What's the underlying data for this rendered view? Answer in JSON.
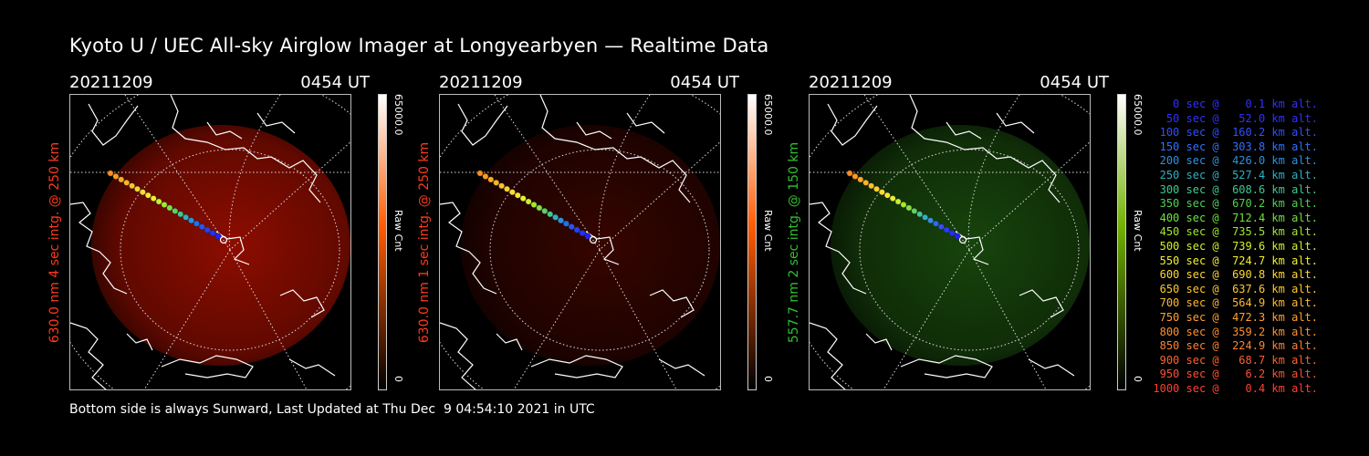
{
  "title": "Kyoto U / UEC All-sky Airglow Imager at Longyearbyen — Realtime Data",
  "footer": "Bottom side is always Sunward, Last Updated at Thu Dec  9 04:54:10 2021 in UTC",
  "panels": [
    {
      "date": "20211209",
      "time": "0454 UT",
      "ylabel": "630.0 nm 4 sec intg. @ 250 km",
      "ylabel_color": "#ff3a1a",
      "colorbar_max": "65000.0",
      "colorbar_min": "0",
      "colorbar_unit": "Raw Cnt",
      "colorbar_top": "#ffffff",
      "colorbar_mid": "#ff5a00",
      "colorbar_bottom": "#000000",
      "glow_color": "#b01000",
      "glow_level": 0.55
    },
    {
      "date": "20211209",
      "time": "0454 UT",
      "ylabel": "630.0 nm 1 sec intg. @ 250 km",
      "ylabel_color": "#ff3a1a",
      "colorbar_max": "65000.0",
      "colorbar_min": "0",
      "colorbar_unit": "Raw Cnt",
      "colorbar_top": "#ffffff",
      "colorbar_mid": "#ff5a00",
      "colorbar_bottom": "#000000",
      "glow_color": "#5a0800",
      "glow_level": 0.35
    },
    {
      "date": "20211209",
      "time": "0454 UT",
      "ylabel": "557.7 nm 2 sec intg. @ 150 km",
      "ylabel_color": "#30c030",
      "colorbar_max": "65000.0",
      "colorbar_min": "0",
      "colorbar_unit": "Raw Cnt",
      "colorbar_top": "#ffffff",
      "colorbar_mid": "#70b000",
      "colorbar_bottom": "#000000",
      "glow_color": "#1f5a10",
      "glow_level": 0.5
    }
  ],
  "trajectory_colors": [
    "#ff8c1a",
    "#ff9a1a",
    "#ffa820",
    "#ffb520",
    "#ffc228",
    "#ffd030",
    "#ffdc30",
    "#f8e830",
    "#e8f030",
    "#c8f030",
    "#a8e830",
    "#80e040",
    "#60d060",
    "#40c890",
    "#30b0c0",
    "#3090e0",
    "#2070f0",
    "#3050f0",
    "#2040ff",
    "#2030ff",
    "#2020ff"
  ],
  "legend": [
    {
      "text": "0 sec @    0.1 km alt.",
      "color": "#3030ff"
    },
    {
      "text": "50 sec @   52.0 km alt.",
      "color": "#3030ff"
    },
    {
      "text": "100 sec @  160.2 km alt.",
      "color": "#3050ff"
    },
    {
      "text": "150 sec @  303.8 km alt.",
      "color": "#3070ff"
    },
    {
      "text": "200 sec @  426.0 km alt.",
      "color": "#3090e0"
    },
    {
      "text": "250 sec @  527.4 km alt.",
      "color": "#30b0c0"
    },
    {
      "text": "300 sec @  608.6 km alt.",
      "color": "#40c890"
    },
    {
      "text": "350 sec @  670.2 km alt.",
      "color": "#50d050"
    },
    {
      "text": "400 sec @  712.4 km alt.",
      "color": "#70e040"
    },
    {
      "text": "450 sec @  735.5 km alt.",
      "color": "#a0e830"
    },
    {
      "text": "500 sec @  739.6 km alt.",
      "color": "#d0f030"
    },
    {
      "text": "550 sec @  724.7 km alt.",
      "color": "#f0f030"
    },
    {
      "text": "600 sec @  690.8 km alt.",
      "color": "#ffd830"
    },
    {
      "text": "650 sec @  637.6 km alt.",
      "color": "#ffc830"
    },
    {
      "text": "700 sec @  564.9 km alt.",
      "color": "#ffb830"
    },
    {
      "text": "750 sec @  472.3 km alt.",
      "color": "#ffa030"
    },
    {
      "text": "800 sec @  359.2 km alt.",
      "color": "#ff9030"
    },
    {
      "text": "850 sec @  224.9 km alt.",
      "color": "#ff8030"
    },
    {
      "text": "900 sec @   68.7 km alt.",
      "color": "#ff6030"
    },
    {
      "text": "950 sec @    6.2 km alt.",
      "color": "#ff5030"
    },
    {
      "text": "1000 sec @    0.4 km alt.",
      "color": "#ff4030"
    }
  ]
}
